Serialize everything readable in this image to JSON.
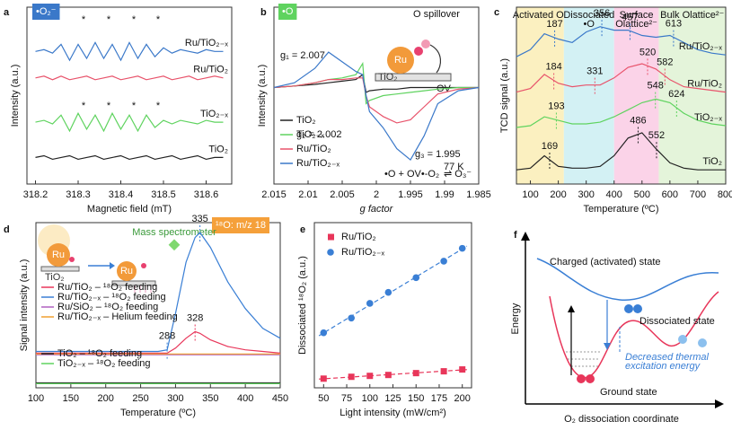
{
  "chart_data": [
    {
      "type": "line",
      "panel": "a",
      "title": "•O₂⁻",
      "title_color": "#3a78c9",
      "xlabel": "Magnetic field (mT)",
      "ylabel": "Intensity (a.u.)",
      "xlim": [
        318.18,
        318.66
      ],
      "ylim": [
        0,
        10
      ],
      "xticks": [
        318.2,
        318.3,
        318.4,
        318.5,
        318.6
      ],
      "legend": "inline",
      "markers": "*",
      "x": [
        318.2,
        318.22,
        318.24,
        318.26,
        318.28,
        318.3,
        318.32,
        318.34,
        318.36,
        318.38,
        318.4,
        318.42,
        318.44,
        318.46,
        318.48,
        318.5,
        318.52,
        318.54,
        318.56,
        318.58,
        318.6,
        318.62,
        318.64
      ],
      "series": [
        {
          "name": "Ru/TiO₂₋ₓ",
          "color": "#3a78c9",
          "values": [
            7.5,
            7.6,
            7.4,
            7.9,
            7.0,
            7.9,
            7.1,
            8.0,
            7.1,
            7.9,
            7.0,
            8.0,
            7.1,
            7.9,
            7.2,
            7.7,
            7.4,
            7.6,
            7.5,
            7.4,
            7.6,
            7.5,
            7.5
          ]
        },
        {
          "name": "Ru/TiO₂",
          "color": "#e8536b",
          "values": [
            6.0,
            6.1,
            5.9,
            6.1,
            5.9,
            6.0,
            6.1,
            5.9,
            6.0,
            6.1,
            5.9,
            6.0,
            6.1,
            5.9,
            6.0,
            6.1,
            5.9,
            6.0,
            6.1,
            5.9,
            6.0,
            6.1,
            6.0
          ]
        },
        {
          "name": "TiO₂₋ₓ",
          "color": "#5fd35f",
          "values": [
            3.5,
            3.6,
            3.4,
            3.9,
            3.0,
            4.0,
            3.1,
            3.9,
            3.0,
            4.0,
            3.1,
            3.9,
            3.0,
            3.9,
            3.2,
            3.6,
            3.4,
            3.6,
            3.5,
            3.4,
            3.6,
            3.5,
            3.5
          ]
        },
        {
          "name": "TiO₂",
          "color": "#222222",
          "values": [
            1.5,
            1.6,
            1.4,
            1.5,
            1.6,
            1.4,
            1.5,
            1.6,
            1.4,
            1.5,
            1.6,
            1.4,
            1.5,
            1.6,
            1.4,
            1.5,
            1.6,
            1.4,
            1.5,
            1.6,
            1.4,
            1.5,
            1.5
          ]
        }
      ]
    },
    {
      "type": "line",
      "panel": "b",
      "title": "•O",
      "title_color": "#5fd35f",
      "xlabel": "g factor",
      "ylabel": "Intensity (a.u.)",
      "xlim": [
        2.015,
        1.985
      ],
      "ylim": [
        -6,
        5
      ],
      "xticks": [
        2.015,
        2.01,
        2.005,
        2,
        1.995,
        1.99,
        1.985
      ],
      "legend": "lower-left",
      "annotations": [
        "g₁ = 2.007",
        "g₂ = 2.002",
        "g₃ = 1.995",
        "O spillover",
        "Ru",
        "TiO₂",
        "OV",
        "•O + OV•-O₂",
        "77 K",
        "⇌ O₃⁻"
      ],
      "x": [
        2.015,
        2.012,
        2.009,
        2.007,
        2.005,
        2.003,
        2.002,
        2.0015,
        2.001,
        1.999,
        1.997,
        1.995,
        1.993,
        1.991,
        1.988,
        1.985
      ],
      "series": [
        {
          "name": "TiO₂",
          "color": "#222222",
          "values": [
            0,
            0.1,
            0.2,
            0.3,
            0.4,
            0.5,
            0.8,
            -0.3,
            -0.2,
            -0.1,
            -0.1,
            0,
            0,
            0,
            0,
            0
          ]
        },
        {
          "name": "TiO₂₋ₓ",
          "color": "#5fd35f",
          "values": [
            0,
            0.1,
            0.3,
            0.5,
            0.6,
            0.8,
            1.5,
            -1.0,
            -0.8,
            -0.5,
            -0.4,
            -0.3,
            -0.2,
            -0.1,
            0,
            0
          ]
        },
        {
          "name": "Ru/TiO₂",
          "color": "#e8536b",
          "values": [
            0,
            0.1,
            0.3,
            0.5,
            0.5,
            0.6,
            0.6,
            -0.5,
            -1.2,
            -1.8,
            -2.2,
            -2.0,
            -1.2,
            -0.4,
            -0.1,
            0
          ]
        },
        {
          "name": "Ru/TiO₂₋ₓ",
          "color": "#3a78c9",
          "values": [
            0,
            0.3,
            1.2,
            2.2,
            1.6,
            1.0,
            0.8,
            -0.5,
            -1.5,
            -2.5,
            -3.8,
            -4.5,
            -3.0,
            -1.0,
            -0.2,
            0
          ]
        }
      ]
    },
    {
      "type": "line",
      "panel": "c",
      "xlabel": "Temperature (ºC)",
      "ylabel": "TCD signal (a.u.)",
      "xlim": [
        50,
        800
      ],
      "ylim": [
        0,
        10
      ],
      "xticks": [
        100,
        200,
        300,
        400,
        500,
        600,
        700,
        800
      ],
      "legend": "inline",
      "regions": [
        {
          "label": [
            "Activated O₂"
          ],
          "from": 50,
          "to": 220,
          "color": "#fbf0c0"
        },
        {
          "label": [
            "Dissociated",
            "•O"
          ],
          "from": 220,
          "to": 400,
          "color": "#d3f1f4"
        },
        {
          "label": [
            "Surface",
            "Olattice²⁻"
          ],
          "from": 400,
          "to": 560,
          "color": "#fbd3e8"
        },
        {
          "label": [
            "Bulk Olattice²⁻"
          ],
          "from": 560,
          "to": 800,
          "color": "#e4f4da"
        }
      ],
      "x": [
        50,
        100,
        150,
        200,
        250,
        300,
        350,
        400,
        450,
        500,
        550,
        600,
        650,
        700,
        750,
        800
      ],
      "series": [
        {
          "name": "Ru/TiO₂₋ₓ",
          "color": "#3a78c9",
          "values": [
            7.2,
            7.6,
            8.5,
            8.2,
            8.0,
            8.6,
            8.9,
            8.7,
            8.7,
            8.4,
            8.3,
            8.4,
            8.0,
            7.6,
            7.4,
            7.3
          ],
          "peaks": [
            187,
            356,
            457,
            613
          ]
        },
        {
          "name": "Ru/TiO₂",
          "color": "#e8536b",
          "values": [
            5.2,
            5.4,
            6.2,
            5.7,
            5.5,
            5.6,
            5.6,
            6.0,
            6.6,
            6.8,
            6.5,
            5.9,
            5.5,
            5.4,
            5.3,
            5.2
          ],
          "peaks": [
            184,
            331,
            520,
            582
          ]
        },
        {
          "name": "TiO₂₋ₓ",
          "color": "#5fd35f",
          "values": [
            3.2,
            3.3,
            3.8,
            3.6,
            3.4,
            3.4,
            3.5,
            3.8,
            4.2,
            4.6,
            4.8,
            4.6,
            4.0,
            3.6,
            3.4,
            3.3
          ],
          "peaks": [
            193,
            548,
            624
          ]
        },
        {
          "name": "TiO₂",
          "color": "#222222",
          "values": [
            0.8,
            0.9,
            1.6,
            1.0,
            0.9,
            0.9,
            1.0,
            1.6,
            2.6,
            2.9,
            2.0,
            1.2,
            0.9,
            0.8,
            0.8,
            0.8
          ],
          "peaks": [
            169,
            486,
            552
          ]
        }
      ]
    },
    {
      "type": "line",
      "panel": "d",
      "title": "¹⁸O: m/z 18",
      "title_color": "#f5a03a",
      "xlabel": "Temperature (ºC)",
      "ylabel": "Signal intensity (a.u.)",
      "xlim": [
        100,
        450
      ],
      "ylim": [
        0,
        10
      ],
      "xticks": [
        100,
        150,
        200,
        250,
        300,
        350,
        400,
        450
      ],
      "legend": "left",
      "annotations": [
        "Ru",
        "Ru",
        "TiO₂",
        "Mass spectrometer"
      ],
      "x": [
        100,
        125,
        150,
        175,
        200,
        225,
        250,
        275,
        288,
        300,
        315,
        328,
        335,
        350,
        375,
        400,
        425,
        450
      ],
      "series": [
        {
          "name": "Ru/TiO₂ – ¹⁸O₂ feeding",
          "color": "#e8365a",
          "values": [
            2.1,
            2.1,
            2.1,
            2.1,
            2.1,
            2.1,
            2.1,
            2.1,
            2.1,
            2.4,
            3.0,
            3.4,
            3.3,
            2.9,
            2.5,
            2.3,
            2.2,
            2.1
          ],
          "peaks": [
            328
          ]
        },
        {
          "name": "Ru/TiO₂₋ₓ – ¹⁸O₂ feeding",
          "color": "#3a7fd5",
          "values": [
            2.2,
            2.2,
            2.2,
            2.2,
            2.2,
            2.2,
            2.2,
            2.2,
            2.3,
            4.5,
            7.6,
            9.1,
            9.4,
            8.5,
            6.4,
            4.8,
            3.6,
            3.0
          ],
          "peaks": [
            288,
            335
          ]
        },
        {
          "name": "Ru/SiO₂ – ¹⁸O₂ feeding",
          "color": "#b060c0",
          "values": [
            2.0,
            2.0,
            2.0,
            2.0,
            2.0,
            2.0,
            2.0,
            2.0,
            2.0,
            2.0,
            2.0,
            2.0,
            2.0,
            2.0,
            2.0,
            2.0,
            2.0,
            2.0
          ]
        },
        {
          "name": "Ru/TiO₂₋ₓ – Helium feeding",
          "color": "#f0a030",
          "values": [
            2.05,
            2.05,
            2.05,
            2.05,
            2.05,
            2.05,
            2.05,
            2.05,
            2.05,
            2.05,
            2.05,
            2.05,
            2.05,
            2.05,
            2.05,
            2.05,
            2.05,
            2.05
          ]
        },
        {
          "name": "TiO₂ – ¹⁸O₂ feeding",
          "color": "#222222",
          "values": [
            0.3,
            0.3,
            0.3,
            0.3,
            0.3,
            0.3,
            0.3,
            0.3,
            0.3,
            0.3,
            0.3,
            0.3,
            0.3,
            0.3,
            0.3,
            0.3,
            0.3,
            0.3
          ]
        },
        {
          "name": "TiO₂₋ₓ – ¹⁸O₂ feeding",
          "color": "#5fd35f",
          "values": [
            0.25,
            0.25,
            0.25,
            0.25,
            0.25,
            0.25,
            0.25,
            0.25,
            0.25,
            0.25,
            0.25,
            0.25,
            0.25,
            0.25,
            0.25,
            0.25,
            0.25,
            0.25
          ]
        }
      ]
    },
    {
      "type": "scatter",
      "panel": "e",
      "xlabel": "Light intensity (mW/cm²)",
      "ylabel": "Dissociated ¹⁸O₂ (a.u.)",
      "xlim": [
        40,
        210
      ],
      "ylim": [
        0,
        9
      ],
      "xticks": [
        50,
        75,
        100,
        125,
        150,
        175,
        200
      ],
      "legend": "upper-left",
      "fit": "linear",
      "x": [
        50,
        80,
        100,
        120,
        150,
        180,
        200
      ],
      "series": [
        {
          "name": "Ru/TiO₂",
          "color": "#e8365a",
          "marker": "square",
          "values": [
            0.5,
            0.6,
            0.65,
            0.7,
            0.8,
            0.9,
            1.0
          ]
        },
        {
          "name": "Ru/TiO₂₋ₓ",
          "color": "#3a7fd5",
          "marker": "circle",
          "values": [
            3.0,
            3.8,
            4.6,
            5.2,
            6.0,
            6.9,
            7.6
          ]
        }
      ]
    }
  ],
  "diagram": {
    "panel": "f",
    "ylabel": "Energy",
    "xlabel": "O₂ dissociation coordinate",
    "labels": {
      "charged": "Charged (activated) state",
      "dissociated": "Dissociated state",
      "barrier": [
        "Decreased thermal",
        "excitation energy"
      ],
      "ground": "Ground state"
    }
  }
}
